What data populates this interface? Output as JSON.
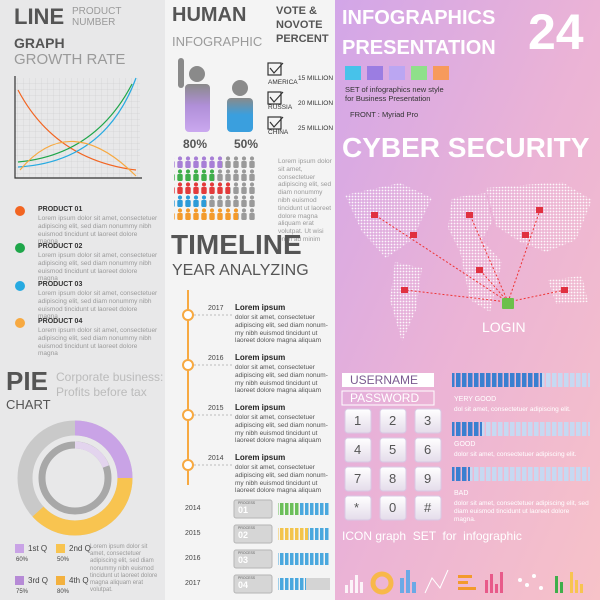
{
  "line_graph": {
    "title": "LINE",
    "subtitle": [
      "PRODUCT",
      "NUMBER"
    ],
    "heading": "GRAPH",
    "caption": "GROWTH RATE",
    "products": [
      {
        "name": "PRODUCT 01",
        "text": "Lorem ipsum dolor sit amet, consectetuer adipiscing elit, sed diam nonummy nibh euismod tincidunt ut laoreet dolore magna"
      },
      {
        "name": "PRODUCT 02",
        "text": "Lorem ipsum dolor sit amet, consectetuer adipiscing elit, sed diam nonummy nibh euismod tincidunt ut laoreet dolore magna"
      },
      {
        "name": "PRODUCT 03",
        "text": "Lorem ipsum dolor sit amet, consectetuer adipiscing elit, sed diam nonummy nibh euismod tincidunt ut laoreet dolore magna"
      },
      {
        "name": "PRODUCT 04",
        "text": "Lorem ipsum dolor sit amet, consectetuer adipiscing elit, sed diam nonummy nibh euismod tincidunt ut laoreet dolore magna"
      }
    ]
  },
  "pie_chart": {
    "title": "PIE",
    "subtitle": "CHART",
    "caption": [
      "Corporate business:",
      "Profits before tax"
    ],
    "legend": [
      {
        "label": "1st Q",
        "value": "60%"
      },
      {
        "label": "2nd Q",
        "value": "50%"
      },
      {
        "label": "3rd Q",
        "value": "75%"
      },
      {
        "label": "4th Q",
        "value": "80%"
      }
    ],
    "text": "Lorem ipsum dolor sit amet, consectetuer adipiscing elit, sed diam nonummy nibh euismod tincidunt ut laoreet dolore magna aliquam erat volutpat."
  },
  "human": {
    "title": "HUMAN",
    "subtitle": "INFOGRAPHIC",
    "vote": [
      "VOTE &",
      "NOVOTE",
      "PERCENT"
    ],
    "percents": [
      "80%",
      "50%"
    ],
    "countries": [
      {
        "name": "AMERICA",
        "value": "15 MILLION"
      },
      {
        "name": "RUSSIA",
        "value": "20 MILLION"
      },
      {
        "name": "CHINA",
        "value": "25 MILLION"
      }
    ],
    "text": "Lorem ipsum dolor sit amet, consectetuer adipiscing elit, sed diam nonummy nibh euismod tincidunt ut laoreet dolore magna aliquam erat volutpat. Ut wisi enim ad minim"
  },
  "timeline": {
    "title": "TIMELINE",
    "subtitle": "YEAR ANALYZING",
    "events": [
      {
        "year": "2017",
        "heading": "Lorem ipsum",
        "text": "dolor sit amet, consectetuer adipiscing elit, sed diam nonum-my nibh euismod tincidunt ut laoreet dolore magna aliquam"
      },
      {
        "year": "2016",
        "heading": "Lorem ipsum",
        "text": "dolor sit amet, consectetuer adipiscing elit, sed diam nonum-my nibh euismod tincidunt ut laoreet dolore magna aliquam"
      },
      {
        "year": "2015",
        "heading": "Lorem ipsum",
        "text": "dolor sit amet, consectetuer adipiscing elit, sed diam nonum-my nibh euismod tincidunt ut laoreet dolore magna aliquam"
      },
      {
        "year": "2014",
        "heading": "Lorem ipsum",
        "text": "dolor sit amet, consectetuer adipiscing elit, sed diam nonum-my nibh euismod tincidunt ut laoreet dolore magna aliquam"
      }
    ],
    "step_label": "PROCESS",
    "steps": [
      {
        "year": "2014",
        "number": "01"
      },
      {
        "year": "2015",
        "number": "02"
      },
      {
        "year": "2016",
        "number": "03"
      },
      {
        "year": "2017",
        "number": "04"
      }
    ]
  },
  "presentation": {
    "title": [
      "INFOGRAPHICS",
      "PRESENTATION"
    ],
    "number": "24",
    "description": [
      "SET of infographics new style",
      "for Business Presentation"
    ],
    "font": "FRONT : Myriad Pro"
  },
  "security": {
    "title": "CYBER SECURITY",
    "login": "LOGIN",
    "fields": [
      "USERNAME",
      "PASSWORD"
    ],
    "keys": [
      "1",
      "2",
      "3",
      "4",
      "5",
      "6",
      "7",
      "8",
      "9",
      "*",
      "0",
      "#"
    ],
    "ratings": [
      {
        "label": "YERY GOOD",
        "text": "dol sit amet, consectetuer adipiscing elit."
      },
      {
        "label": "GOOD",
        "text": "dolor sit amet, consectetuer adipiscing elit."
      },
      {
        "label": "BAD",
        "text": "dolor sit amet, consectetuer adipiscing elit, sed diam euismod tincidunt ut laoreet dolore magna."
      }
    ]
  },
  "icons": {
    "title": "ICON graph  SET  for  infographic"
  }
}
